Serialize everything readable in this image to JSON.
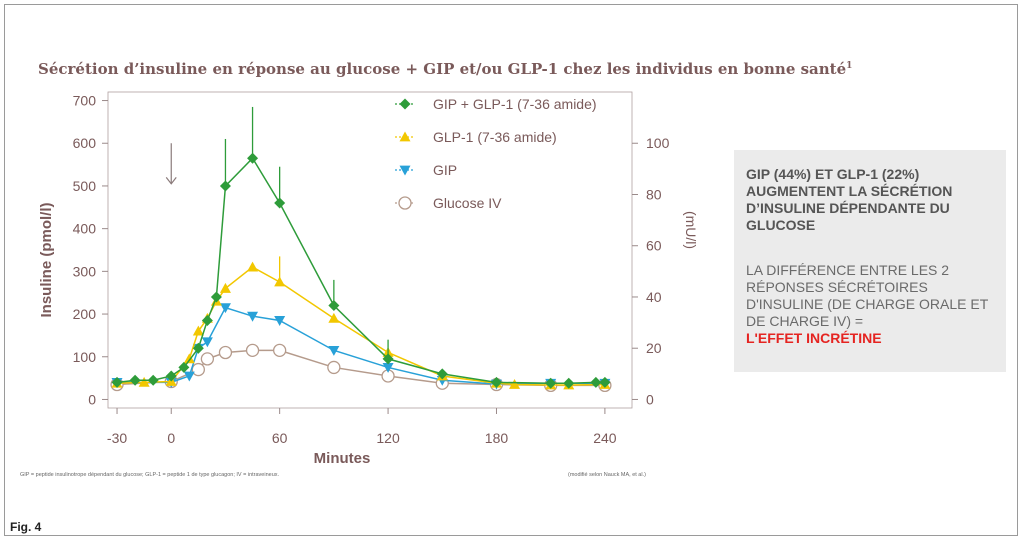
{
  "title": "Sécrétion d’insuline en réponse au glucose + GIP et/ou GLP-1 chez les individus en bonne santé",
  "title_ref": "1",
  "side_panel": {
    "headline": "GIP (44%) ET GLP-1 (22%) AUGMENTENT LA SÉCRÉTION D’INSULINE DÉPENDANTE DU GLUCOSE",
    "body": "LA DIFFÉRENCE ENTRE LES 2 RÉPONSES SÉCRÉTOIRES D'INSULINE (DE CHARGE ORALE ET DE CHARGE IV) =",
    "highlight": "L'EFFET INCRÉTINE",
    "highlight_color": "#e52421"
  },
  "footnote_left": "GIP = peptide insulinotrope dépendant du glucose; GLP-1 = peptide 1 de type glucagon; IV = intraveineux.",
  "footnote_right": "(modifié selon Nauck MA, et al.)",
  "figure_label": "Fig. 4",
  "chart_data": {
    "type": "line",
    "xlabel": "Minutes",
    "ylabel": "Insuline (pmol/l)",
    "y2label": "(mU/l)",
    "xticks": [
      -30,
      0,
      60,
      120,
      180,
      240
    ],
    "xlim": [
      -35,
      255
    ],
    "yticks": [
      0,
      100,
      200,
      300,
      400,
      500,
      600,
      700
    ],
    "ylim": [
      -20,
      720
    ],
    "y2ticks": [
      0,
      20,
      40,
      60,
      80,
      100
    ],
    "y2_factor": 6,
    "arrow_x": 0,
    "legend_position": "top-center",
    "series": [
      {
        "name": "GIP + GLP-1 (7-36 amide)",
        "color": "#2e9c3a",
        "marker": "diamond",
        "x": [
          -30,
          -20,
          -10,
          0,
          7,
          15,
          20,
          25,
          30,
          45,
          60,
          90,
          120,
          150,
          180,
          210,
          220,
          235,
          240
        ],
        "y": [
          40,
          45,
          45,
          55,
          75,
          120,
          185,
          240,
          500,
          565,
          460,
          220,
          95,
          60,
          40,
          38,
          38,
          40,
          40
        ],
        "err": [
          0,
          0,
          0,
          0,
          0,
          0,
          0,
          0,
          110,
          120,
          85,
          60,
          45,
          0,
          0,
          0,
          0,
          0,
          0
        ]
      },
      {
        "name": "GLP-1 (7-36 amide)",
        "color": "#f2c700",
        "marker": "triangle-up",
        "x": [
          -30,
          -15,
          0,
          10,
          15,
          20,
          25,
          30,
          45,
          60,
          90,
          120,
          150,
          180,
          190,
          210,
          220,
          240
        ],
        "y": [
          38,
          40,
          42,
          95,
          160,
          190,
          230,
          260,
          310,
          275,
          190,
          110,
          55,
          38,
          35,
          34,
          34,
          35
        ],
        "err": [
          0,
          0,
          0,
          0,
          0,
          0,
          0,
          0,
          0,
          60,
          0,
          0,
          0,
          0,
          0,
          0,
          0,
          0
        ]
      },
      {
        "name": "GIP",
        "color": "#28a1d8",
        "marker": "triangle-down",
        "x": [
          -30,
          0,
          10,
          15,
          20,
          30,
          45,
          60,
          90,
          120,
          150,
          180,
          210,
          240
        ],
        "y": [
          40,
          40,
          55,
          120,
          135,
          215,
          195,
          185,
          115,
          75,
          45,
          36,
          38,
          38
        ],
        "err": [
          0,
          0,
          0,
          0,
          0,
          0,
          0,
          0,
          0,
          0,
          0,
          0,
          0,
          0
        ]
      },
      {
        "name": "Glucose IV",
        "color": "#b59b8c",
        "marker": "circle-open",
        "x": [
          -30,
          0,
          15,
          20,
          30,
          45,
          60,
          90,
          120,
          150,
          180,
          210,
          240
        ],
        "y": [
          35,
          42,
          70,
          95,
          110,
          115,
          115,
          75,
          55,
          38,
          35,
          33,
          33
        ],
        "err": [
          0,
          0,
          0,
          0,
          0,
          0,
          0,
          0,
          0,
          0,
          0,
          0,
          0
        ]
      }
    ]
  }
}
